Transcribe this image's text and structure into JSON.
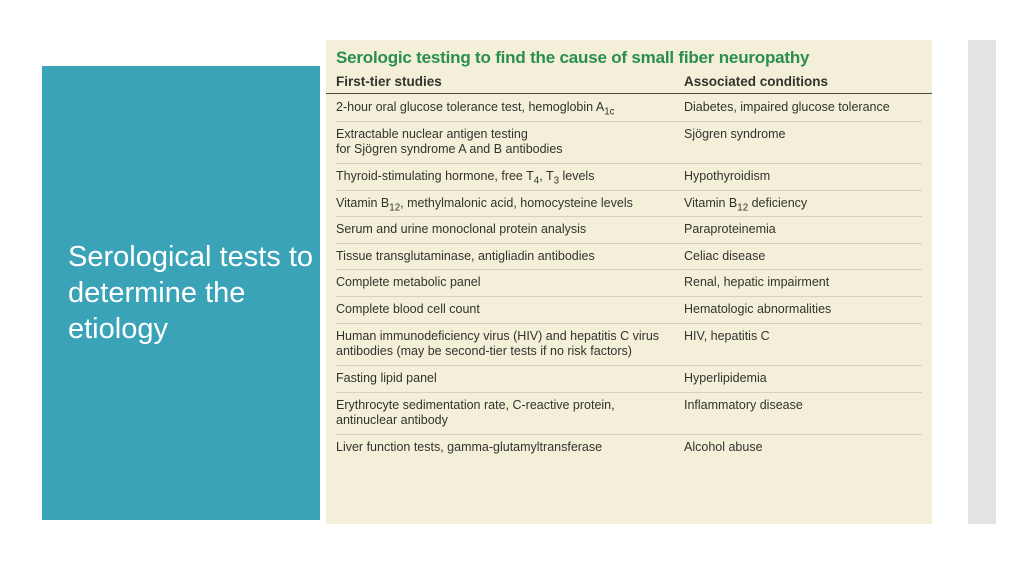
{
  "sidebar": {
    "title": "Serological tests to determine the etiology"
  },
  "table": {
    "title": "Serologic testing to find the cause of small fiber neuropathy",
    "columns": [
      "First-tier studies",
      "Associated conditions"
    ],
    "rows": [
      {
        "study": "2-hour oral glucose tolerance test, hemoglobin A<sub>1c</sub>",
        "condition": "Diabetes, impaired glucose tolerance"
      },
      {
        "study": "Extractable nuclear antigen testing<br>for Sjögren syndrome A and B antibodies",
        "condition": "Sjögren syndrome"
      },
      {
        "study": "Thyroid-stimulating hormone, free T<sub>4</sub>, T<sub>3</sub> levels",
        "condition": "Hypothyroidism"
      },
      {
        "study": "Vitamin B<sub>12</sub>, methylmalonic acid, homocysteine levels",
        "condition": "Vitamin B<sub>12</sub> deficiency"
      },
      {
        "study": "Serum and urine monoclonal protein analysis",
        "condition": "Paraproteinemia"
      },
      {
        "study": "Tissue transglutaminase, antigliadin antibodies",
        "condition": "Celiac disease"
      },
      {
        "study": "Complete metabolic panel",
        "condition": "Renal, hepatic impairment"
      },
      {
        "study": "Complete blood cell count",
        "condition": "Hematologic abnormalities"
      },
      {
        "study": "Human immunodeficiency virus (HIV) and hepatitis C virus antibodies (may be second-tier tests if no risk factors)",
        "condition": "HIV, hepatitis C"
      },
      {
        "study": "Fasting lipid panel",
        "condition": "Hyperlipidemia"
      },
      {
        "study": "Erythrocyte sedimentation rate, C-reactive protein, antinuclear antibody",
        "condition": "Inflammatory disease"
      },
      {
        "study": "Liver function tests, gamma-glutamyltransferase",
        "condition": "Alcohol abuse"
      }
    ]
  },
  "colors": {
    "sidebar_bg": "#3ba3b8",
    "table_bg": "#f3efd9",
    "title_green": "#2a8f4a",
    "text": "#33332d",
    "right_strip": "#e3e3e3"
  }
}
